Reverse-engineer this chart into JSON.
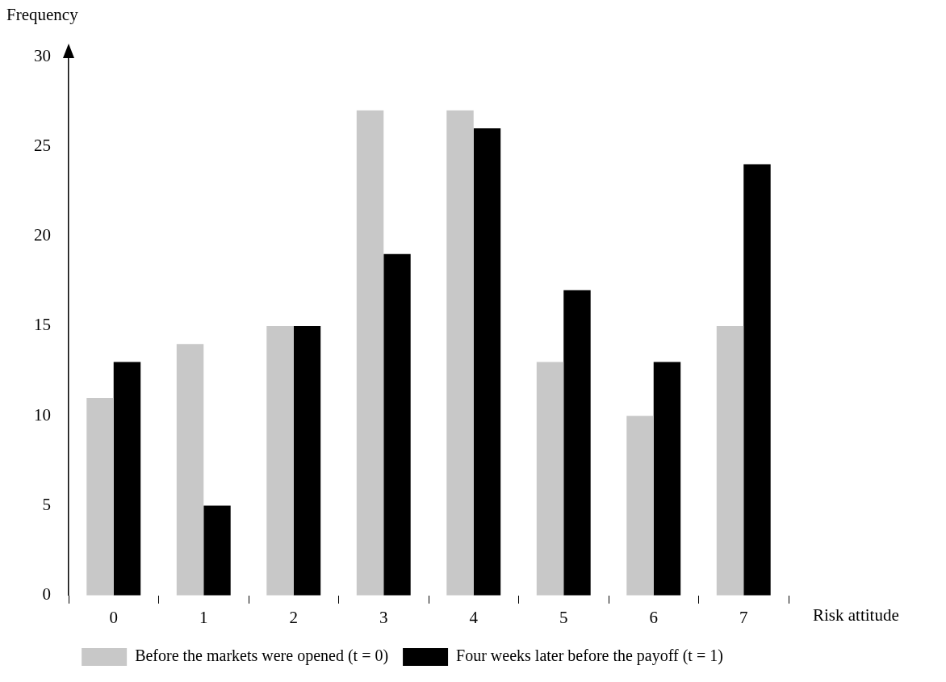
{
  "chart_data": {
    "type": "bar",
    "xlabel": "Risk attitude",
    "ylabel": "Frequency",
    "categories": [
      "0",
      "1",
      "2",
      "3",
      "4",
      "5",
      "6",
      "7"
    ],
    "series": [
      {
        "name": "Before the markets were opened (t = 0)",
        "color": "#c8c8c8",
        "values": [
          11,
          14,
          15,
          27,
          27,
          13,
          10,
          15
        ]
      },
      {
        "name": "Four weeks later before the payoff (t = 1)",
        "color": "#000000",
        "values": [
          13,
          5,
          15,
          19,
          26,
          17,
          13,
          24
        ]
      }
    ],
    "ylim": [
      0,
      30
    ],
    "yticks": [
      0,
      5,
      10,
      15,
      20,
      25,
      30
    ],
    "grid": false,
    "legend": "bottom"
  }
}
